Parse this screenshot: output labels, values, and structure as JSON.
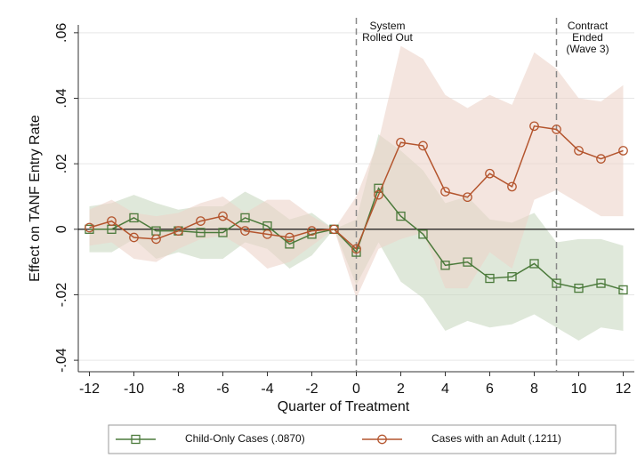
{
  "chart_data": {
    "type": "line",
    "x": [
      -12,
      -11,
      -10,
      -9,
      -8,
      -7,
      -6,
      -5,
      -4,
      -3,
      -2,
      -1,
      0,
      1,
      2,
      3,
      4,
      5,
      6,
      7,
      8,
      9,
      10,
      11,
      12
    ],
    "xlim": [
      -12.5,
      12.5
    ],
    "xticks": [
      -12,
      -10,
      -8,
      -6,
      -4,
      -2,
      0,
      2,
      4,
      6,
      8,
      10,
      12
    ],
    "ylim": [
      -0.0435,
      0.0624
    ],
    "yticks": [
      {
        "value": 0.06,
        "label": ".06"
      },
      {
        "value": 0.04,
        "label": ".04"
      },
      {
        "value": 0.02,
        "label": ".02"
      },
      0,
      {
        "value": -0.02,
        "label": "-.02"
      },
      {
        "value": -0.04,
        "label": "-.04"
      }
    ],
    "grid": true,
    "xlabel": "Quarter of Treatment",
    "ylabel": "Effect on TANF Entry Rate",
    "annotations": [
      {
        "x": 0,
        "lines": [
          "System",
          "Rolled Out"
        ]
      },
      {
        "x": 9,
        "lines": [
          "Contract",
          "Ended",
          "(Wave 3)"
        ]
      }
    ],
    "series": [
      {
        "name": "Child-Only Cases (.0870)",
        "color": "#4b7a3b",
        "band_color": "#c9d9c2",
        "marker": "square",
        "values": [
          0,
          0,
          0.0035,
          -0.0005,
          -0.0005,
          -0.001,
          -0.001,
          0.0035,
          0.001,
          -0.0045,
          -0.0015,
          0,
          -0.007,
          0.0125,
          0.004,
          -0.0015,
          -0.011,
          -0.01,
          -0.015,
          -0.0145,
          -0.0105,
          -0.0165,
          -0.018,
          -0.0165,
          -0.0185
        ],
        "upper": [
          0.007,
          0.008,
          0.0105,
          0.008,
          0.006,
          0.007,
          0.007,
          0.0115,
          0.008,
          0.003,
          0.005,
          0,
          0.003,
          0.029,
          0.024,
          0.018,
          0.008,
          0.01,
          0.003,
          0.002,
          0.005,
          -0.004,
          -0.003,
          -0.003,
          -0.005
        ],
        "lower": [
          -0.007,
          -0.007,
          -0.003,
          -0.009,
          -0.007,
          -0.009,
          -0.009,
          -0.004,
          -0.006,
          -0.012,
          -0.008,
          0,
          -0.017,
          -0.004,
          -0.016,
          -0.021,
          -0.031,
          -0.028,
          -0.03,
          -0.029,
          -0.026,
          -0.03,
          -0.034,
          -0.03,
          -0.031
        ]
      },
      {
        "name": "Cases with an Adult (.1211)",
        "color": "#b4552e",
        "band_color": "#ecd3c9",
        "marker": "circle",
        "values": [
          0.0005,
          0.0025,
          -0.0025,
          -0.003,
          -0.0005,
          0.0025,
          0.004,
          -0.0005,
          -0.0015,
          -0.0025,
          -0.0005,
          0,
          -0.006,
          0.0105,
          0.0265,
          0.0255,
          0.0115,
          0.0098,
          0.017,
          0.013,
          0.0315,
          0.0305,
          0.024,
          0.0215,
          0.024
        ],
        "upper": [
          0.006,
          0.009,
          0.005,
          0.004,
          0.005,
          0.008,
          0.01,
          0.005,
          0.009,
          0.009,
          0.004,
          0,
          0.01,
          0.027,
          0.056,
          0.052,
          0.041,
          0.037,
          0.041,
          0.038,
          0.054,
          0.049,
          0.04,
          0.039,
          0.044
        ],
        "lower": [
          -0.005,
          -0.004,
          -0.009,
          -0.01,
          -0.006,
          -0.003,
          -0.002,
          -0.006,
          -0.012,
          -0.01,
          -0.005,
          0,
          -0.021,
          -0.006,
          -0.003,
          -0.001,
          -0.018,
          -0.018,
          -0.007,
          -0.012,
          0.009,
          0.012,
          0.008,
          0.004,
          0.004
        ]
      }
    ]
  }
}
